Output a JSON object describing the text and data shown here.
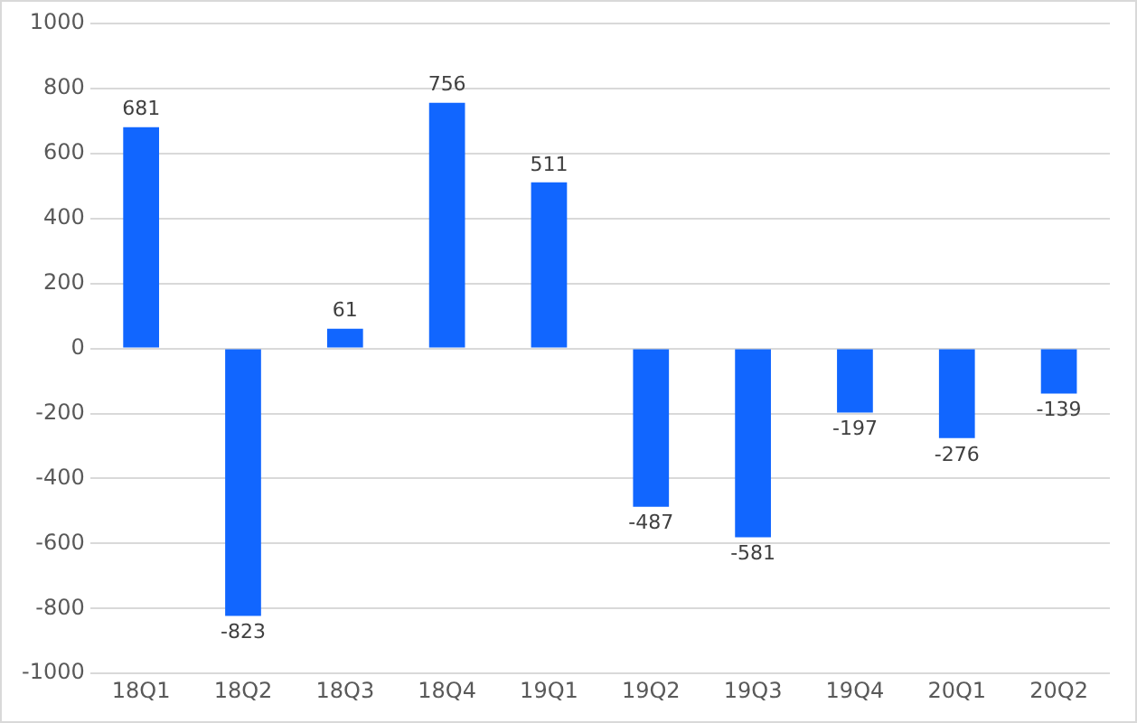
{
  "chart_data": {
    "type": "bar",
    "categories": [
      "18Q1",
      "18Q2",
      "18Q3",
      "18Q4",
      "19Q1",
      "19Q2",
      "19Q3",
      "19Q4",
      "20Q1",
      "20Q2"
    ],
    "values": [
      681,
      -823,
      61,
      756,
      511,
      -487,
      -581,
      -197,
      -276,
      -139
    ],
    "color": "#1166ff",
    "ylim": [
      -1000,
      1000
    ],
    "yticks": [
      -1000,
      -800,
      -600,
      -400,
      -200,
      0,
      200,
      400,
      600,
      800,
      1000
    ],
    "grid": "y",
    "data_labels": true
  }
}
